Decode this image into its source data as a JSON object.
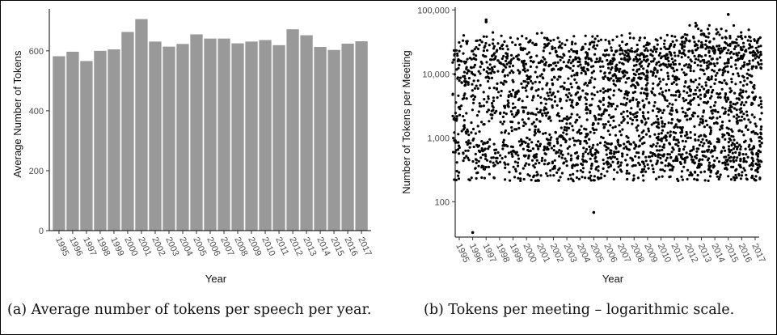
{
  "captions": {
    "a": "(a) Average number of tokens per speech per year.",
    "b": "(b) Tokens per meeting – logarithmic scale."
  },
  "chart_data": [
    {
      "type": "bar",
      "categories": [
        "1995",
        "1996",
        "1997",
        "1998",
        "1999",
        "2000",
        "2001",
        "2002",
        "2003",
        "2004",
        "2005",
        "2006",
        "2007",
        "2008",
        "2009",
        "2010",
        "2011",
        "2012",
        "2013",
        "2014",
        "2015",
        "2016",
        "2017"
      ],
      "values": [
        582,
        597,
        566,
        600,
        605,
        663,
        706,
        631,
        614,
        623,
        655,
        641,
        641,
        625,
        631,
        636,
        619,
        672,
        652,
        613,
        603,
        624,
        632
      ],
      "xlabel": "Year",
      "ylabel": "Average Number of Tokens",
      "yticks": [
        0,
        200,
        400,
        600
      ],
      "ylim": [
        0,
        740
      ],
      "bar_color": "#999999",
      "grid": false
    },
    {
      "type": "scatter",
      "categories": [
        "1995",
        "1996",
        "1997",
        "1998",
        "1999",
        "2000",
        "2001",
        "2002",
        "2003",
        "2004",
        "2005",
        "2006",
        "2007",
        "2008",
        "2009",
        "2010",
        "2011",
        "2012",
        "2013",
        "2014",
        "2015",
        "2016",
        "2017"
      ],
      "xlabel": "Year",
      "ylabel": "Number of Tokens per Meeting",
      "yscale": "log",
      "yticks": [
        100,
        1000,
        10000,
        100000
      ],
      "ytick_labels": [
        "100",
        "1,000",
        "10,000",
        "100,000"
      ],
      "ylim": [
        28,
        110000
      ],
      "point_color": "#000000",
      "grid": false,
      "outliers": [
        {
          "x": "1996",
          "y": 33
        },
        {
          "x": "1997",
          "y": 70000
        },
        {
          "x": "1997",
          "y": 65000
        },
        {
          "x": "2005",
          "y": 68
        },
        {
          "x": "2015",
          "y": 85000
        }
      ]
    }
  ]
}
